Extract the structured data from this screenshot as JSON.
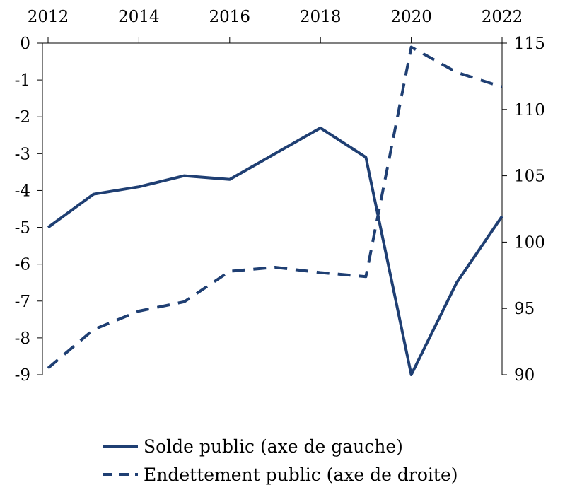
{
  "chart_data": {
    "type": "line",
    "title": "",
    "x": [
      2012,
      2013,
      2014,
      2015,
      2016,
      2017,
      2018,
      2019,
      2020,
      2021,
      2022
    ],
    "x_tick_labels": [
      "2012",
      "2014",
      "2016",
      "2018",
      "2020",
      "2022"
    ],
    "x_axis_position": "top",
    "xlim": [
      2012,
      2022
    ],
    "y_left": {
      "range": [
        -9,
        0
      ],
      "ticks": [
        "0",
        "-1",
        "-2",
        "-3",
        "-4",
        "-5",
        "-6",
        "-7",
        "-8",
        "-9"
      ]
    },
    "y_right": {
      "range": [
        90,
        115
      ],
      "ticks": [
        "115",
        "110",
        "105",
        "100",
        "95",
        "90"
      ]
    },
    "grid": false,
    "legend_position": "bottom",
    "series": [
      {
        "name": "Solde public (axe de gauche)",
        "axis": "left",
        "style": "solid",
        "color": "#1f3f73",
        "values": [
          -5.0,
          -4.1,
          -3.9,
          -3.6,
          -3.7,
          -3.0,
          -2.3,
          -3.1,
          -9.0,
          -6.5,
          -4.7
        ]
      },
      {
        "name": "Endettement public (axe de droite)",
        "axis": "right",
        "style": "dashed",
        "color": "#1f3f73",
        "values": [
          90.5,
          93.4,
          94.8,
          95.5,
          97.8,
          98.1,
          97.7,
          97.4,
          114.7,
          112.8,
          111.7
        ]
      }
    ]
  }
}
